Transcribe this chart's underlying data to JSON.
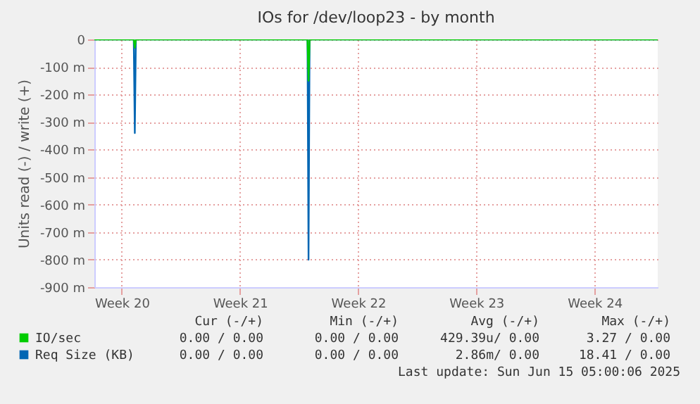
{
  "chart_data": {
    "type": "line",
    "title": "IOs for /dev/loop23 - by month",
    "ylabel": "Units read (-) / write (+)",
    "x": [
      "2025-05-13T21:00",
      "2025-05-16T05:00",
      "2025-05-16T06:30",
      "2025-05-16T08:00",
      "2025-05-26T12:00",
      "2025-05-26T13:30",
      "2025-05-26T15:00",
      "2025-06-16T06:00"
    ],
    "series": [
      {
        "name": "IO/sec",
        "color": "#00cc00",
        "values": [
          0,
          0,
          -30,
          0,
          0,
          -150,
          0,
          0
        ]
      },
      {
        "name": "Req Size (KB)",
        "color": "#0066b3",
        "values": [
          0,
          0,
          -340,
          0,
          0,
          -800,
          0,
          0
        ]
      }
    ],
    "xlim": [
      "2025-05-13T21:00",
      "2025-06-16T06:00"
    ],
    "xticks": [
      {
        "value": "2025-05-15T12:00",
        "label": "Week 20"
      },
      {
        "value": "2025-05-22T12:00",
        "label": "Week 21"
      },
      {
        "value": "2025-05-29T12:00",
        "label": "Week 22"
      },
      {
        "value": "2025-06-05T12:00",
        "label": "Week 23"
      },
      {
        "value": "2025-06-12T12:00",
        "label": "Week 24"
      }
    ],
    "ylim": [
      -900,
      0
    ],
    "yticks": [
      {
        "value": -900,
        "label": "-900 m"
      },
      {
        "value": -800,
        "label": "-800 m"
      },
      {
        "value": -700,
        "label": "-700 m"
      },
      {
        "value": -600,
        "label": "-600 m"
      },
      {
        "value": -500,
        "label": "-500 m"
      },
      {
        "value": -400,
        "label": "-400 m"
      },
      {
        "value": -300,
        "label": "-300 m"
      },
      {
        "value": -200,
        "label": "-200 m"
      },
      {
        "value": -100,
        "label": "-100 m"
      },
      0
    ],
    "grid": true,
    "legend": "bottom left",
    "annotations": [
      "Cur (-/+)",
      "Min (-/+)",
      "Avg (-/+)",
      "Max (-/+)",
      "0.00 / 0.00",
      "0.00 / 0.00",
      "429.39u/ 0.00",
      "3.27 / 0.00",
      "0.00 / 0.00",
      "0.00 / 0.00",
      "2.86m/ 0.00",
      "18.41 / 0.00",
      "Last update: Sun Jun 15 05:00:06 2025"
    ]
  }
}
